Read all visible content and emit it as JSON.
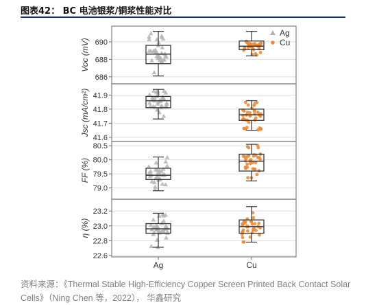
{
  "figure": {
    "title": "图表42： BC 电池银浆/铜浆性能对比",
    "source": "资料来源：《Thermal Stable High-Efficiency Copper Screen Printed Back Contact Solar Cells》（Ning Chen 等，2022）， 华鑫研究"
  },
  "colors": {
    "ag": "#b3b3b3",
    "cu": "#f08a35",
    "box": "#333333",
    "grid": "#dddddd",
    "frame": "#888888"
  },
  "chart_data": {
    "type": "box",
    "categories": [
      "Ag",
      "Cu"
    ],
    "legend": {
      "position": "top-right",
      "entries": [
        {
          "name": "Ag",
          "marker": "triangle",
          "color": "#b3b3b3"
        },
        {
          "name": "Cu",
          "marker": "circle",
          "color": "#f08a35"
        }
      ]
    },
    "grid": true,
    "panels": [
      {
        "ylabel": "Voc (mV)",
        "ylim": [
          685.2,
          691.8
        ],
        "ticks": [
          686,
          688,
          690
        ],
        "boxes": [
          {
            "name": "Ag",
            "whisker_low": 686.1,
            "q1": 687.5,
            "median": 688.6,
            "q3": 689.6,
            "whisker_high": 691.2
          },
          {
            "name": "Cu",
            "whisker_low": 688.4,
            "q1": 689.1,
            "median": 689.5,
            "q3": 690.1,
            "whisker_high": 691.2
          }
        ]
      },
      {
        "ylabel": "Jsc (mA/cm²)",
        "ylim": [
          41.57,
          41.98
        ],
        "ticks": [
          41.6,
          41.7,
          41.8,
          41.9
        ],
        "boxes": [
          {
            "name": "Ag",
            "whisker_low": 41.73,
            "q1": 41.81,
            "median": 41.86,
            "q3": 41.89,
            "whisker_high": 41.94
          },
          {
            "name": "Cu",
            "whisker_low": 41.65,
            "q1": 41.72,
            "median": 41.76,
            "q3": 41.8,
            "whisker_high": 41.86
          }
        ]
      },
      {
        "ylabel": "FF (%)",
        "ylim": [
          78.6,
          80.65
        ],
        "ticks": [
          79.0,
          79.5,
          80.0,
          80.5
        ],
        "boxes": [
          {
            "name": "Ag",
            "whisker_low": 78.9,
            "q1": 79.3,
            "median": 79.45,
            "q3": 79.7,
            "whisker_high": 80.1
          },
          {
            "name": "Cu",
            "whisker_low": 79.25,
            "q1": 79.6,
            "median": 79.95,
            "q3": 80.2,
            "whisker_high": 80.55
          }
        ]
      },
      {
        "ylabel": "η (%)",
        "ylim": [
          22.58,
          23.36
        ],
        "ticks": [
          22.6,
          22.8,
          23.0,
          23.2
        ],
        "boxes": [
          {
            "name": "Ag",
            "whisker_low": 22.71,
            "q1": 22.9,
            "median": 22.96,
            "q3": 23.03,
            "whisker_high": 23.17
          },
          {
            "name": "Cu",
            "whisker_low": 22.78,
            "q1": 22.9,
            "median": 22.99,
            "q3": 23.08,
            "whisker_high": 23.26
          }
        ]
      }
    ]
  }
}
